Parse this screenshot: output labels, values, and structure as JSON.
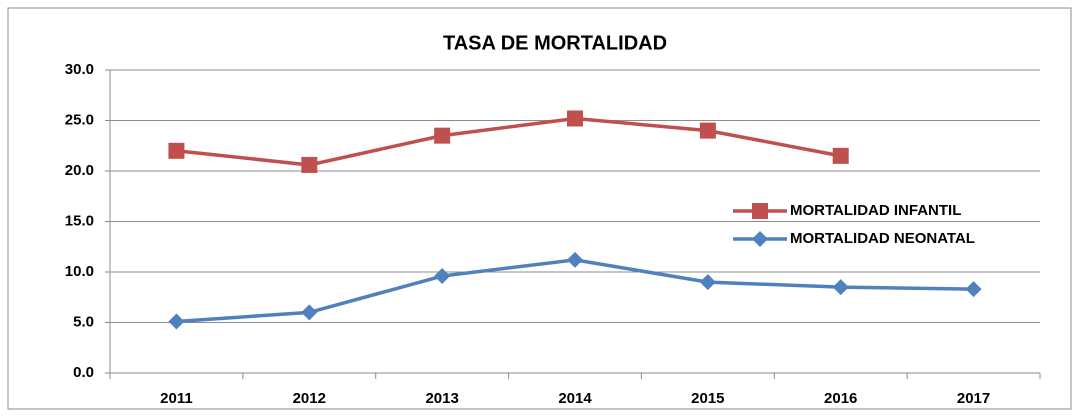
{
  "chart_data": {
    "type": "line",
    "title": "TASA DE MORTALIDAD",
    "categories": [
      "2011",
      "2012",
      "2013",
      "2014",
      "2015",
      "2016",
      "2017"
    ],
    "series": [
      {
        "name": "MORTALIDAD INFANTIL",
        "color": "#c0504d",
        "marker": "square",
        "values": [
          22.0,
          20.6,
          23.5,
          25.2,
          24.0,
          21.5,
          null
        ]
      },
      {
        "name": "MORTALIDAD NEONATAL",
        "color": "#4f81bd",
        "marker": "diamond",
        "values": [
          5.1,
          6.0,
          9.6,
          11.2,
          9.0,
          8.5,
          8.3
        ]
      }
    ],
    "ylim": [
      0,
      30
    ],
    "yticks": [
      {
        "value": 0,
        "label": "0.0"
      },
      {
        "value": 5,
        "label": "5.0"
      },
      {
        "value": 10,
        "label": "10.0"
      },
      {
        "value": 15,
        "label": "15.0"
      },
      {
        "value": 20,
        "label": "20.0"
      },
      {
        "value": 25,
        "label": "25.0"
      },
      {
        "value": 30,
        "label": "30.0"
      }
    ],
    "grid": true,
    "legend": "right"
  }
}
